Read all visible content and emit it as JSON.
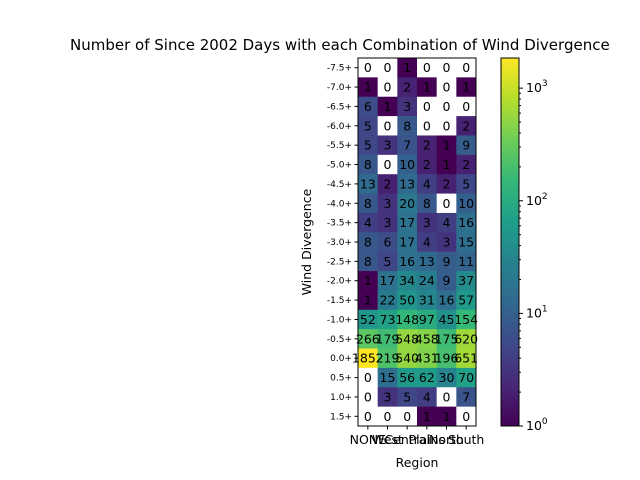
{
  "chart_data": {
    "type": "heatmap",
    "title": "Number of Since 2002 Days with each Combination of Wind Divergence",
    "xlabel": "Region",
    "ylabel": "Wind Divergence",
    "x_categories": [
      "NONE",
      "West",
      "Central",
      "Plains",
      "North",
      "South"
    ],
    "y_categories": [
      "-7.5+",
      "-7.0+",
      "-6.5+",
      "-6.0+",
      "-5.5+",
      "-5.0+",
      "-4.5+",
      "-4.0+",
      "-3.5+",
      "-3.0+",
      "-2.5+",
      "-2.0+",
      "-1.5+",
      "-1.0+",
      "-0.5+",
      "0.0+",
      "0.5+",
      "1.0+",
      "1.5+"
    ],
    "values": [
      [
        0,
        0,
        1,
        0,
        0,
        0
      ],
      [
        1,
        0,
        2,
        1,
        0,
        1
      ],
      [
        6,
        1,
        3,
        0,
        0,
        0
      ],
      [
        5,
        0,
        8,
        0,
        0,
        2
      ],
      [
        5,
        3,
        7,
        2,
        1,
        9
      ],
      [
        8,
        0,
        10,
        2,
        1,
        2
      ],
      [
        13,
        2,
        13,
        4,
        2,
        5
      ],
      [
        8,
        3,
        20,
        8,
        0,
        10
      ],
      [
        4,
        3,
        17,
        3,
        4,
        16
      ],
      [
        8,
        6,
        17,
        4,
        3,
        15
      ],
      [
        8,
        5,
        16,
        13,
        9,
        11
      ],
      [
        1,
        17,
        34,
        24,
        9,
        37
      ],
      [
        1,
        22,
        50,
        31,
        16,
        57
      ],
      [
        52,
        73,
        148,
        97,
        45,
        154
      ],
      [
        266,
        179,
        548,
        458,
        175,
        620
      ],
      [
        1852,
        219,
        540,
        431,
        196,
        651
      ],
      [
        0,
        15,
        56,
        62,
        30,
        70
      ],
      [
        0,
        3,
        5,
        4,
        0,
        7
      ],
      [
        0,
        0,
        0,
        1,
        1,
        0
      ]
    ],
    "zero_cells": "white",
    "colormap": "viridis",
    "color_scale": "log",
    "color_range": [
      1,
      1852
    ],
    "colorbar_ticks": [
      "10^0",
      "10^1",
      "10^2",
      "10^3"
    ],
    "grid": false,
    "legend": "colorbar-right"
  }
}
